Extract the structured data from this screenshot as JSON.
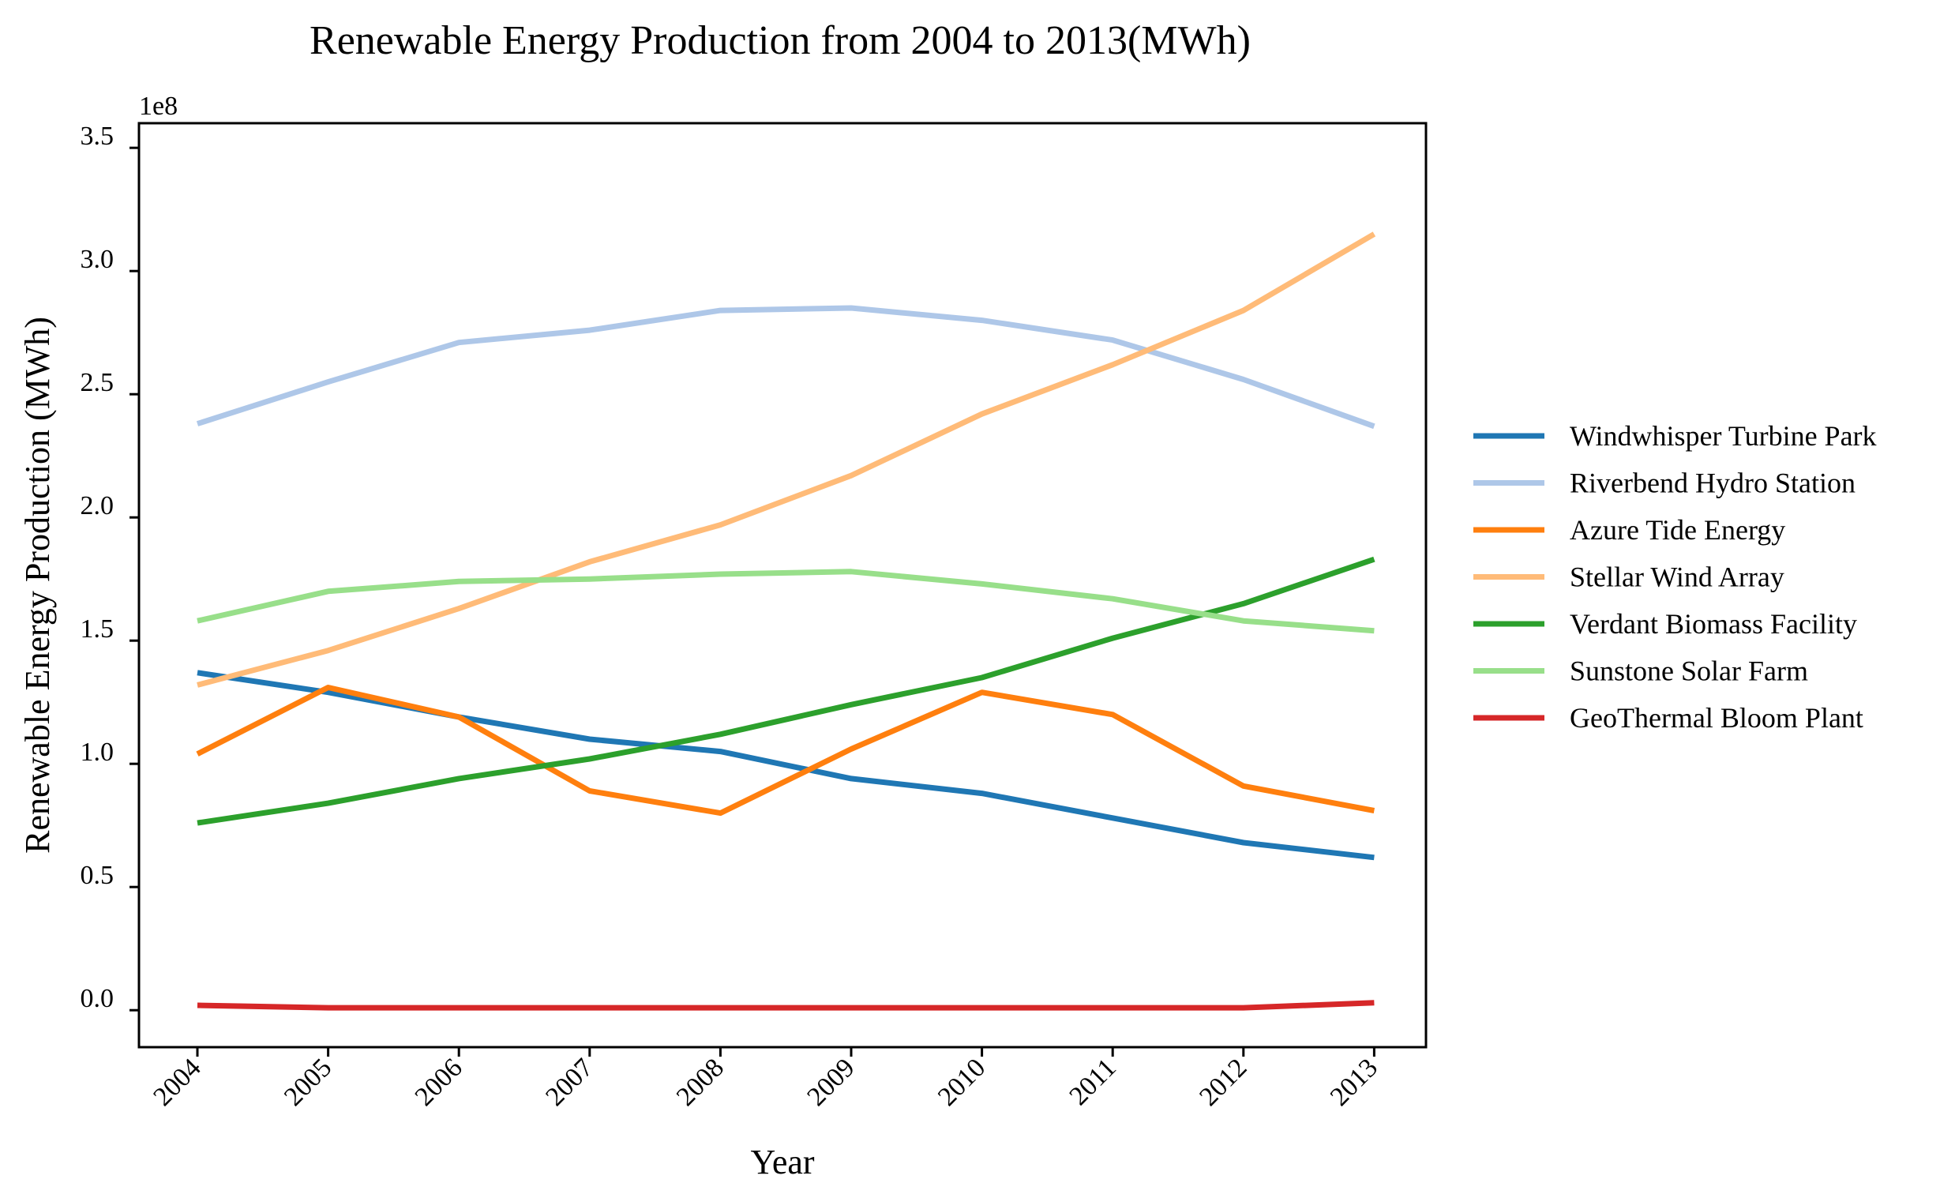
{
  "chart_data": {
    "type": "line",
    "title": "Renewable Energy Production from 2004 to 2013(MWh)",
    "xlabel": "Year",
    "ylabel": "Renewable Energy Production (MWh)",
    "y_offset_label": "1e8",
    "y_scale": 100000000,
    "ylim": [
      -0.15,
      3.6
    ],
    "y_ticks": [
      0.0,
      0.5,
      1.0,
      1.5,
      2.0,
      2.5,
      3.0,
      3.5
    ],
    "y_tick_labels": [
      "0.0",
      "0.5",
      "1.0",
      "1.5",
      "2.0",
      "2.5",
      "3.0",
      "3.5"
    ],
    "x": [
      "2004",
      "2005",
      "2006",
      "2007",
      "2008",
      "2009",
      "2010",
      "2011",
      "2012",
      "2013"
    ],
    "grid": false,
    "legend_position": "right",
    "series": [
      {
        "name": "Windwhisper Turbine Park",
        "color": "#1f77b4",
        "values": [
          1.37,
          1.29,
          1.19,
          1.1,
          1.05,
          0.94,
          0.88,
          0.78,
          0.68,
          0.62
        ]
      },
      {
        "name": "Riverbend Hydro Station",
        "color": "#aec7e8",
        "values": [
          2.38,
          2.55,
          2.71,
          2.76,
          2.84,
          2.85,
          2.8,
          2.72,
          2.56,
          2.37
        ]
      },
      {
        "name": "Azure Tide Energy",
        "color": "#ff7f0e",
        "values": [
          1.04,
          1.31,
          1.19,
          0.89,
          0.8,
          1.06,
          1.29,
          1.2,
          0.91,
          0.81
        ]
      },
      {
        "name": "Stellar Wind Array",
        "color": "#ffbb78",
        "values": [
          1.32,
          1.46,
          1.63,
          1.82,
          1.97,
          2.17,
          2.42,
          2.62,
          2.84,
          3.15
        ]
      },
      {
        "name": "Verdant Biomass Facility",
        "color": "#2ca02c",
        "values": [
          0.76,
          0.84,
          0.94,
          1.02,
          1.12,
          1.24,
          1.35,
          1.51,
          1.65,
          1.83
        ]
      },
      {
        "name": "Sunstone Solar Farm",
        "color": "#98df8a",
        "values": [
          1.58,
          1.7,
          1.74,
          1.75,
          1.77,
          1.78,
          1.73,
          1.67,
          1.58,
          1.54
        ]
      },
      {
        "name": "GeoThermal Bloom Plant",
        "color": "#d62728",
        "values": [
          0.02,
          0.01,
          0.01,
          0.01,
          0.01,
          0.01,
          0.01,
          0.01,
          0.01,
          0.03
        ]
      }
    ]
  }
}
